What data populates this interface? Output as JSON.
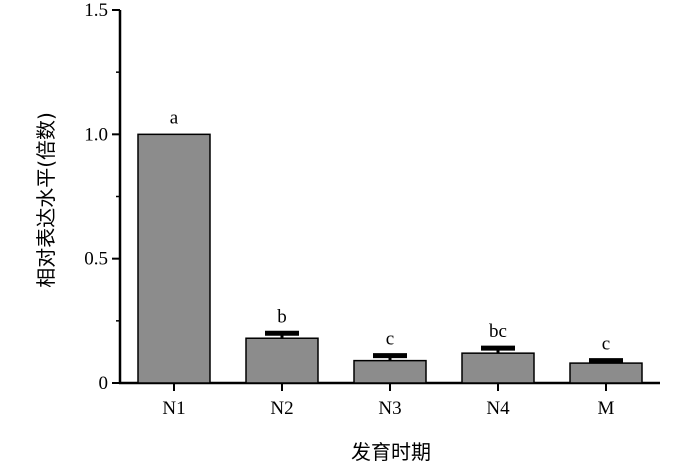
{
  "chart_data": {
    "type": "bar",
    "categories": [
      "N1",
      "N2",
      "N3",
      "N4",
      "M"
    ],
    "values": [
      1.0,
      0.18,
      0.09,
      0.12,
      0.08
    ],
    "errors": [
      0.0,
      0.02,
      0.02,
      0.02,
      0.01
    ],
    "significance_labels": [
      "a",
      "b",
      "c",
      "bc",
      "c"
    ],
    "xlabel": "发育时期",
    "ylabel": "相对表达水平(倍数)",
    "ylim": [
      0,
      1.5
    ],
    "yticks": [
      0,
      0.5,
      1.0,
      1.5
    ],
    "ytick_labels": [
      "0",
      "0.5",
      "1.0",
      "1.5"
    ],
    "grid": false,
    "colors": {
      "bar": "#8c8c8c",
      "outline": "#000000"
    }
  }
}
